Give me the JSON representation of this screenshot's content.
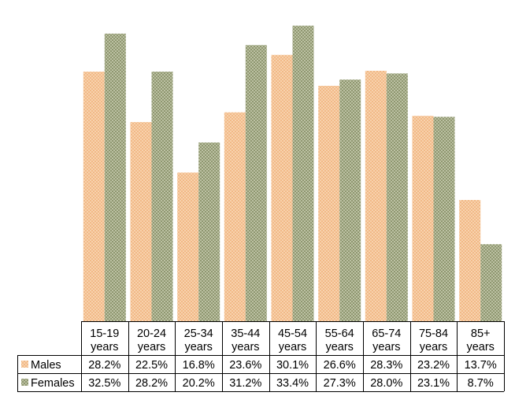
{
  "chart_data": {
    "type": "bar",
    "categories": [
      [
        "15-19",
        "years"
      ],
      [
        "20-24",
        "years"
      ],
      [
        "25-34",
        "years"
      ],
      [
        "35-44",
        "years"
      ],
      [
        "45-54",
        "years"
      ],
      [
        "55-64",
        "years"
      ],
      [
        "65-74",
        "years"
      ],
      [
        "75-84",
        "years"
      ],
      [
        "85+",
        "years"
      ]
    ],
    "series": [
      {
        "name": "Males",
        "color": "#f5c9a0",
        "values": [
          28.2,
          22.5,
          16.8,
          23.6,
          30.1,
          26.6,
          28.3,
          23.2,
          13.7
        ],
        "labels": [
          "28.2%",
          "22.5%",
          "16.8%",
          "23.6%",
          "30.1%",
          "26.6%",
          "28.3%",
          "23.2%",
          "13.7%"
        ]
      },
      {
        "name": "Females",
        "color": "#a6ad8a",
        "values": [
          32.5,
          28.2,
          20.2,
          31.2,
          33.4,
          27.3,
          28.0,
          23.1,
          8.7
        ],
        "labels": [
          "32.5%",
          "28.2%",
          "20.2%",
          "31.2%",
          "33.4%",
          "27.3%",
          "28.0%",
          "23.1%",
          "8.7%"
        ]
      }
    ],
    "ylim": [
      0,
      36
    ],
    "grid": false,
    "legend": "data-table"
  }
}
